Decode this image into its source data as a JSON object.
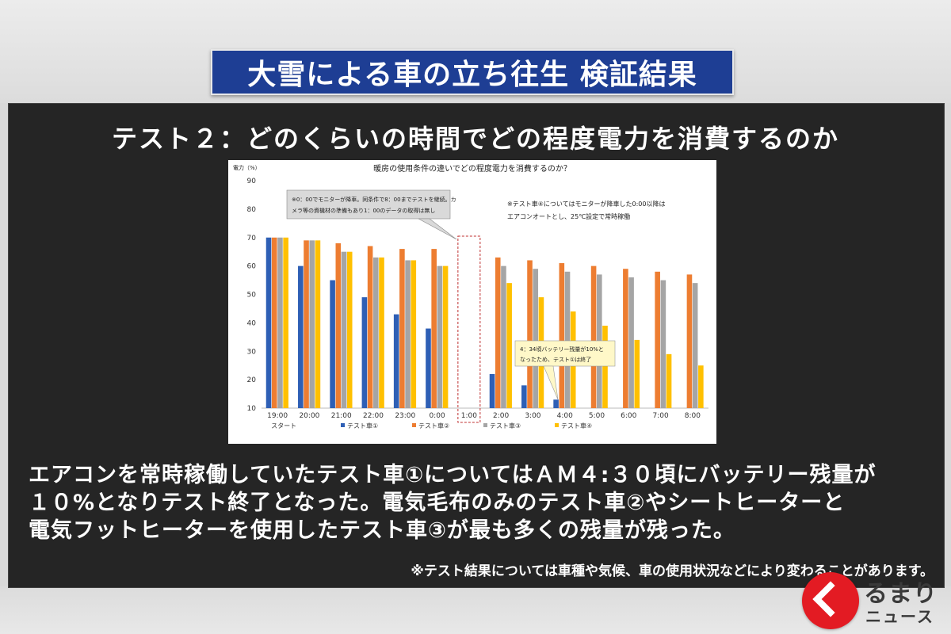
{
  "header": {
    "title": "大雪による車の立ち往生 検証結果"
  },
  "subtitle": "テスト２：どのくらいの時間でどの程度電力を消費するのか",
  "chart_data": {
    "type": "bar",
    "title": "暖房の使用条件の違いでどの程度電力を消費するのか？",
    "ylabel": "電力（%）",
    "ylim": [
      10,
      90
    ],
    "yticks": [
      "90",
      "80",
      "70",
      "60",
      "50",
      "40",
      "30",
      "20",
      "10"
    ],
    "categories": [
      "19:00",
      "20:00",
      "21:00",
      "22:00",
      "23:00",
      "0:00",
      "1:00",
      "2:00",
      "3:00",
      "4:00",
      "5:00",
      "6:00",
      "7:00",
      "8:00"
    ],
    "start_label": "スタート",
    "series": [
      {
        "name": "テスト車①",
        "color": "#2e5fb5",
        "values": [
          70,
          60,
          55,
          49,
          43,
          38,
          null,
          22,
          18,
          13,
          null,
          null,
          null,
          null
        ]
      },
      {
        "name": "テスト車②",
        "color": "#ed7d31",
        "values": [
          70,
          69,
          68,
          67,
          66,
          66,
          null,
          63,
          62,
          61,
          60,
          59,
          58,
          57
        ]
      },
      {
        "name": "テスト車③",
        "color": "#a5a5a5",
        "values": [
          70,
          69,
          65,
          63,
          62,
          60,
          null,
          60,
          59,
          58,
          57,
          56,
          55,
          54
        ]
      },
      {
        "name": "テスト車④",
        "color": "#ffc000",
        "values": [
          70,
          69,
          65,
          63,
          62,
          60,
          null,
          54,
          49,
          44,
          39,
          34,
          29,
          25
        ]
      }
    ],
    "legend_position": "bottom",
    "grid": false,
    "annotations": {
      "note_monitor": [
        "※0：00でモニターが降車。同条件で8：00までテストを継続。カ",
        "メラ等の資機材の準備もあり1：00のデータの取得は無し"
      ],
      "note_car4": [
        "※テスト車④についてはモニターが降車した0:00以降は",
        "エアコンオートとし、25℃設定で常時稼働"
      ],
      "note_battery": [
        "4：34頃バッテリー残量が10%と",
        "なったため、テスト①は終了"
      ]
    }
  },
  "body_lines": [
    "エアコンを常時稼働していたテスト車①についてはＡＭ４:３０頃にバッテリー残量が",
    "１０%となりテスト終了となった。電気毛布のみのテスト車②やシートヒーターと",
    "電気フットヒーターを使用したテスト車③が最も多くの残量が残った。"
  ],
  "footnote": "※テスト結果については車種や気候、車の使用状況などにより変わることがあります。",
  "logo": {
    "kana": "るまり",
    "news": "ニュース"
  }
}
